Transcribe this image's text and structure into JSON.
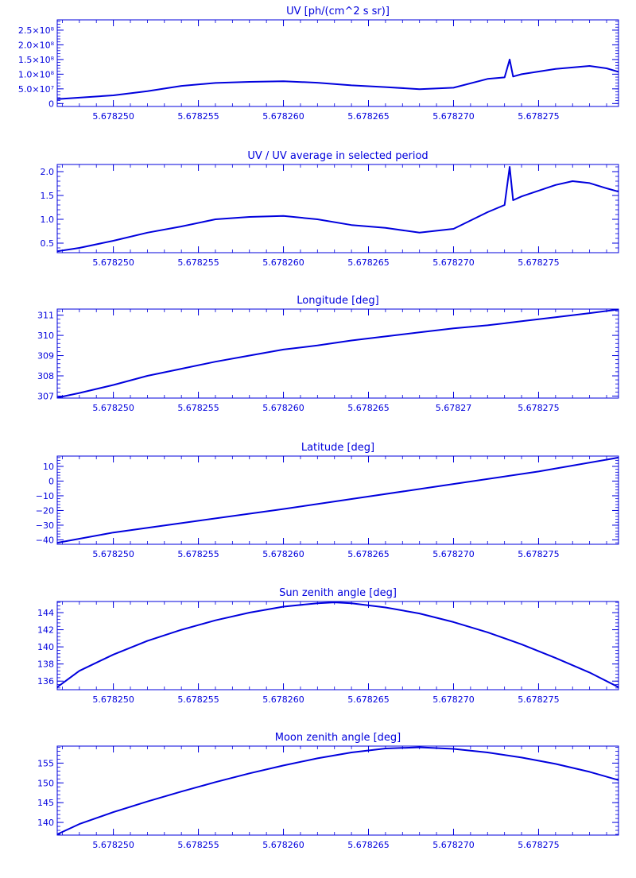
{
  "colors": {
    "ink": "#0000dd",
    "background": "#ffffff"
  },
  "chart_data": [
    {
      "type": "line",
      "title": "UV [ph/(cm^2 s sr)]",
      "xlabel": "",
      "ylabel": "",
      "xlim": [
        5.6782467,
        5.6782797
      ],
      "ylim": [
        -10000000,
        285000000
      ],
      "xticks": [
        5.67825,
        5.678255,
        5.67826,
        5.678265,
        5.67827,
        5.678275
      ],
      "xtick_labels": [
        "5.678250",
        "5.678255",
        "5.678260",
        "5.678265",
        "5.678270",
        "5.678275"
      ],
      "yticks": [
        0,
        50000000,
        100000000,
        150000000,
        200000000,
        250000000
      ],
      "ytick_labels": [
        "0",
        "5.0×10⁷",
        "1.0×10⁸",
        "1.5×10⁸",
        "2.0×10⁸",
        "2.5×10⁸"
      ],
      "series": [
        {
          "x": [
            5.6782467,
            5.678248,
            5.67825,
            5.678252,
            5.678254,
            5.678256,
            5.678258,
            5.67826,
            5.678262,
            5.678264,
            5.678266,
            5.678268,
            5.67827,
            5.678272,
            5.678273,
            5.6782733,
            5.6782735,
            5.678274,
            5.678276,
            5.678278,
            5.678279,
            5.6782797
          ],
          "y": [
            15000000,
            20000000,
            28000000,
            42000000,
            60000000,
            70000000,
            74000000,
            76000000,
            71000000,
            62000000,
            56000000,
            49000000,
            54000000,
            84000000,
            89000000,
            150000000,
            92000000,
            100000000,
            118000000,
            128000000,
            120000000,
            108000000
          ]
        }
      ]
    },
    {
      "type": "line",
      "title": "UV / UV average in selected period",
      "xlabel": "",
      "ylabel": "",
      "xlim": [
        5.6782467,
        5.6782797
      ],
      "ylim": [
        0.3,
        2.15
      ],
      "xticks": [
        5.67825,
        5.678255,
        5.67826,
        5.678265,
        5.67827,
        5.678275
      ],
      "xtick_labels": [
        "5.678250",
        "5.678255",
        "5.678260",
        "5.678265",
        "5.678270",
        "5.678275"
      ],
      "yticks": [
        0.5,
        1.0,
        1.5,
        2.0
      ],
      "ytick_labels": [
        "0.5",
        "1.0",
        "1.5",
        "2.0"
      ],
      "series": [
        {
          "x": [
            5.6782467,
            5.678248,
            5.67825,
            5.678252,
            5.678254,
            5.678256,
            5.678258,
            5.67826,
            5.678262,
            5.678264,
            5.678266,
            5.678268,
            5.67827,
            5.678272,
            5.678273,
            5.6782733,
            5.6782735,
            5.678274,
            5.678276,
            5.678277,
            5.678278,
            5.678279,
            5.6782797
          ],
          "y": [
            0.33,
            0.4,
            0.55,
            0.72,
            0.85,
            1.0,
            1.05,
            1.07,
            1.0,
            0.88,
            0.82,
            0.72,
            0.8,
            1.15,
            1.3,
            2.1,
            1.4,
            1.48,
            1.72,
            1.8,
            1.76,
            1.65,
            1.58
          ]
        }
      ]
    },
    {
      "type": "line",
      "title": "Longitude [deg]",
      "xlabel": "",
      "ylabel": "",
      "xlim": [
        5.6782467,
        5.6782797
      ],
      "ylim": [
        306.9,
        311.3
      ],
      "xticks": [
        5.67825,
        5.678255,
        5.67826,
        5.678265,
        5.67827,
        5.678275
      ],
      "xtick_labels": [
        "5.678250",
        "5.678255",
        "5.678260",
        "5.678265",
        "5.67827",
        "5.678275"
      ],
      "yticks": [
        307,
        308,
        309,
        310,
        311
      ],
      "ytick_labels": [
        "307",
        "308",
        "309",
        "310",
        "311"
      ],
      "series": [
        {
          "x": [
            5.6782467,
            5.678248,
            5.67825,
            5.678252,
            5.678254,
            5.678256,
            5.678258,
            5.67826,
            5.678262,
            5.678264,
            5.678266,
            5.678268,
            5.67827,
            5.678272,
            5.678274,
            5.678276,
            5.678278,
            5.6782797
          ],
          "y": [
            306.92,
            307.15,
            307.55,
            308.0,
            308.35,
            308.7,
            309.0,
            309.3,
            309.5,
            309.75,
            309.95,
            310.15,
            310.35,
            310.5,
            310.7,
            310.9,
            311.1,
            311.28
          ]
        }
      ]
    },
    {
      "type": "line",
      "title": "Latitude [deg]",
      "xlabel": "",
      "ylabel": "",
      "xlim": [
        5.6782467,
        5.6782797
      ],
      "ylim": [
        -43,
        17
      ],
      "xticks": [
        5.67825,
        5.678255,
        5.67826,
        5.678265,
        5.67827,
        5.678275
      ],
      "xtick_labels": [
        "5.678250",
        "5.678255",
        "5.678260",
        "5.678265",
        "5.678270",
        "5.678275"
      ],
      "yticks": [
        -40,
        -30,
        -20,
        -10,
        0,
        10
      ],
      "ytick_labels": [
        "−40",
        "−30",
        "−20",
        "−10",
        "0",
        "10"
      ],
      "series": [
        {
          "x": [
            5.6782467,
            5.67825,
            5.678255,
            5.67826,
            5.678265,
            5.67827,
            5.678275,
            5.6782797
          ],
          "y": [
            -42,
            -35,
            -27,
            -19,
            -10.5,
            -2,
            6.5,
            16
          ]
        }
      ]
    },
    {
      "type": "line",
      "title": "Sun zenith angle [deg]",
      "xlabel": "",
      "ylabel": "",
      "xlim": [
        5.6782467,
        5.6782797
      ],
      "ylim": [
        135.0,
        145.3
      ],
      "xticks": [
        5.67825,
        5.678255,
        5.67826,
        5.678265,
        5.67827,
        5.678275
      ],
      "xtick_labels": [
        "5.678250",
        "5.678255",
        "5.678260",
        "5.678265",
        "5.678270",
        "5.678275"
      ],
      "yticks": [
        136,
        138,
        140,
        142,
        144
      ],
      "ytick_labels": [
        "136",
        "138",
        "140",
        "142",
        "144"
      ],
      "series": [
        {
          "x": [
            5.6782467,
            5.678248,
            5.67825,
            5.678252,
            5.678254,
            5.678256,
            5.678258,
            5.67826,
            5.678262,
            5.678263,
            5.678264,
            5.678266,
            5.678268,
            5.67827,
            5.678272,
            5.678274,
            5.678276,
            5.678278,
            5.6782797
          ],
          "y": [
            135.3,
            137.2,
            139.1,
            140.7,
            142.0,
            143.1,
            144.0,
            144.7,
            145.1,
            145.2,
            145.1,
            144.6,
            143.9,
            142.9,
            141.7,
            140.3,
            138.7,
            137.0,
            135.3
          ]
        }
      ]
    },
    {
      "type": "line",
      "title": "Moon zenith angle [deg]",
      "xlabel": "",
      "ylabel": "",
      "xlim": [
        5.6782467,
        5.6782797
      ],
      "ylim": [
        136.8,
        159.3
      ],
      "xticks": [
        5.67825,
        5.678255,
        5.67826,
        5.678265,
        5.67827,
        5.678275
      ],
      "xtick_labels": [
        "5.678250",
        "5.678255",
        "5.678260",
        "5.678265",
        "5.678270",
        "5.678275"
      ],
      "yticks": [
        140,
        145,
        150,
        155
      ],
      "ytick_labels": [
        "140",
        "145",
        "150",
        "155"
      ],
      "series": [
        {
          "x": [
            5.6782467,
            5.678248,
            5.67825,
            5.678252,
            5.678254,
            5.678256,
            5.678258,
            5.67826,
            5.678262,
            5.678264,
            5.678266,
            5.678268,
            5.67827,
            5.678272,
            5.678274,
            5.678276,
            5.678278,
            5.6782797
          ],
          "y": [
            137.0,
            139.6,
            142.6,
            145.3,
            147.8,
            150.2,
            152.4,
            154.4,
            156.2,
            157.7,
            158.7,
            159.0,
            158.6,
            157.7,
            156.4,
            154.8,
            152.8,
            150.7
          ]
        }
      ]
    }
  ]
}
